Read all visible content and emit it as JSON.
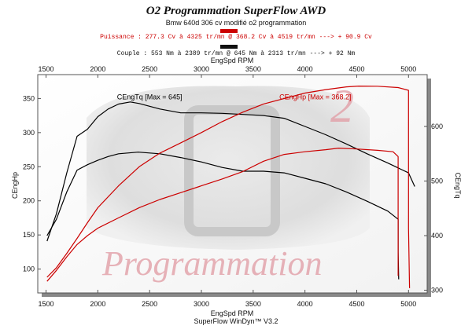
{
  "header": {
    "title": "O2 Programmation SuperFlow AWD",
    "subtitle": "Bmw 640d 306 cv modifié o2 programmation",
    "power_line": "Puissance : 277.3 Cv à 4325 tr/mn  @  368.2 Cv à 4519 tr/mn ---> + 90.9 Cv",
    "torque_line": "Couple : 553 Nm à 2389 tr/mn  @  645 Nm à 2313 tr/mn ---> + 92 Nm"
  },
  "footer": {
    "software": "SuperFlow WinDyn™ V3.2"
  },
  "watermark": {
    "text": "Programmation",
    "number": "2"
  },
  "colors": {
    "stock": "#000000",
    "tuned": "#cc0000",
    "plot_bg": "#ffffff",
    "frame": "#555555"
  },
  "chart_data": {
    "type": "line",
    "xlabel_top": "EngSpd RPM",
    "xlabel_bottom": "EngSpd RPM",
    "ylabel_left": "CEngHp",
    "ylabel_right": "CEngTq",
    "xlim": [
      1420,
      5180
    ],
    "ylim_left": [
      65,
      385
    ],
    "ylim_right": [
      295,
      695
    ],
    "x_ticks": [
      1500,
      2000,
      2500,
      3000,
      3500,
      4000,
      4500,
      5000
    ],
    "y_ticks_left": [
      100,
      150,
      200,
      250,
      300,
      350
    ],
    "y_ticks_right": [
      300,
      400,
      500,
      600
    ],
    "grid": false,
    "annotations": [
      {
        "text": "CEngTq [Max = 645]",
        "x": 2500,
        "y": 650,
        "axis": "right",
        "color": "#000000"
      },
      {
        "text": "CEngHp [Max = 368.2]",
        "x": 4100,
        "y": 650,
        "axis": "right",
        "color": "#cc0000"
      }
    ],
    "series": [
      {
        "id": "tq-tuned",
        "axis": "right",
        "color": "#000000",
        "x": [
          1510,
          1600,
          1700,
          1800,
          1900,
          2000,
          2100,
          2200,
          2313,
          2400,
          2600,
          2800,
          3000,
          3200,
          3400,
          3600,
          3800,
          4000,
          4200,
          4400,
          4600,
          4800,
          5000,
          5060
        ],
        "y": [
          390,
          440,
          515,
          582,
          595,
          618,
          632,
          641,
          645,
          642,
          632,
          625,
          625,
          624,
          622,
          620,
          615,
          600,
          585,
          568,
          550,
          533,
          515,
          490
        ]
      },
      {
        "id": "tq-stock",
        "axis": "right",
        "color": "#000000",
        "x": [
          1510,
          1600,
          1700,
          1800,
          1900,
          2000,
          2100,
          2200,
          2389,
          2600,
          2800,
          3000,
          3200,
          3400,
          3600,
          3800,
          4000,
          4200,
          4400,
          4600,
          4800,
          4900,
          4900,
          4905
        ],
        "y": [
          400,
          430,
          480,
          520,
          530,
          538,
          545,
          550,
          553,
          550,
          543,
          535,
          525,
          518,
          518,
          515,
          505,
          495,
          480,
          463,
          445,
          430,
          370,
          320
        ]
      },
      {
        "id": "hp-tuned",
        "axis": "left",
        "color": "#cc0000",
        "x": [
          1510,
          1600,
          1700,
          1800,
          1900,
          2000,
          2200,
          2400,
          2600,
          2800,
          3000,
          3200,
          3400,
          3600,
          3800,
          4000,
          4200,
          4400,
          4519,
          4700,
          4900,
          5000,
          5000,
          5010
        ],
        "y": [
          88,
          102,
          123,
          145,
          168,
          190,
          222,
          250,
          270,
          285,
          300,
          316,
          330,
          342,
          350,
          358,
          363,
          367,
          368.2,
          368,
          366,
          362,
          160,
          72
        ]
      },
      {
        "id": "hp-stock",
        "axis": "left",
        "color": "#cc0000",
        "x": [
          1510,
          1600,
          1700,
          1800,
          1900,
          2000,
          2200,
          2400,
          2600,
          2800,
          3000,
          3200,
          3400,
          3600,
          3800,
          4000,
          4200,
          4325,
          4500,
          4700,
          4850,
          4900,
          4900
        ],
        "y": [
          82,
          98,
          118,
          136,
          149,
          160,
          175,
          190,
          202,
          212,
          222,
          232,
          243,
          258,
          268,
          272,
          275,
          277.3,
          276,
          274,
          272,
          265,
          90
        ]
      }
    ]
  }
}
